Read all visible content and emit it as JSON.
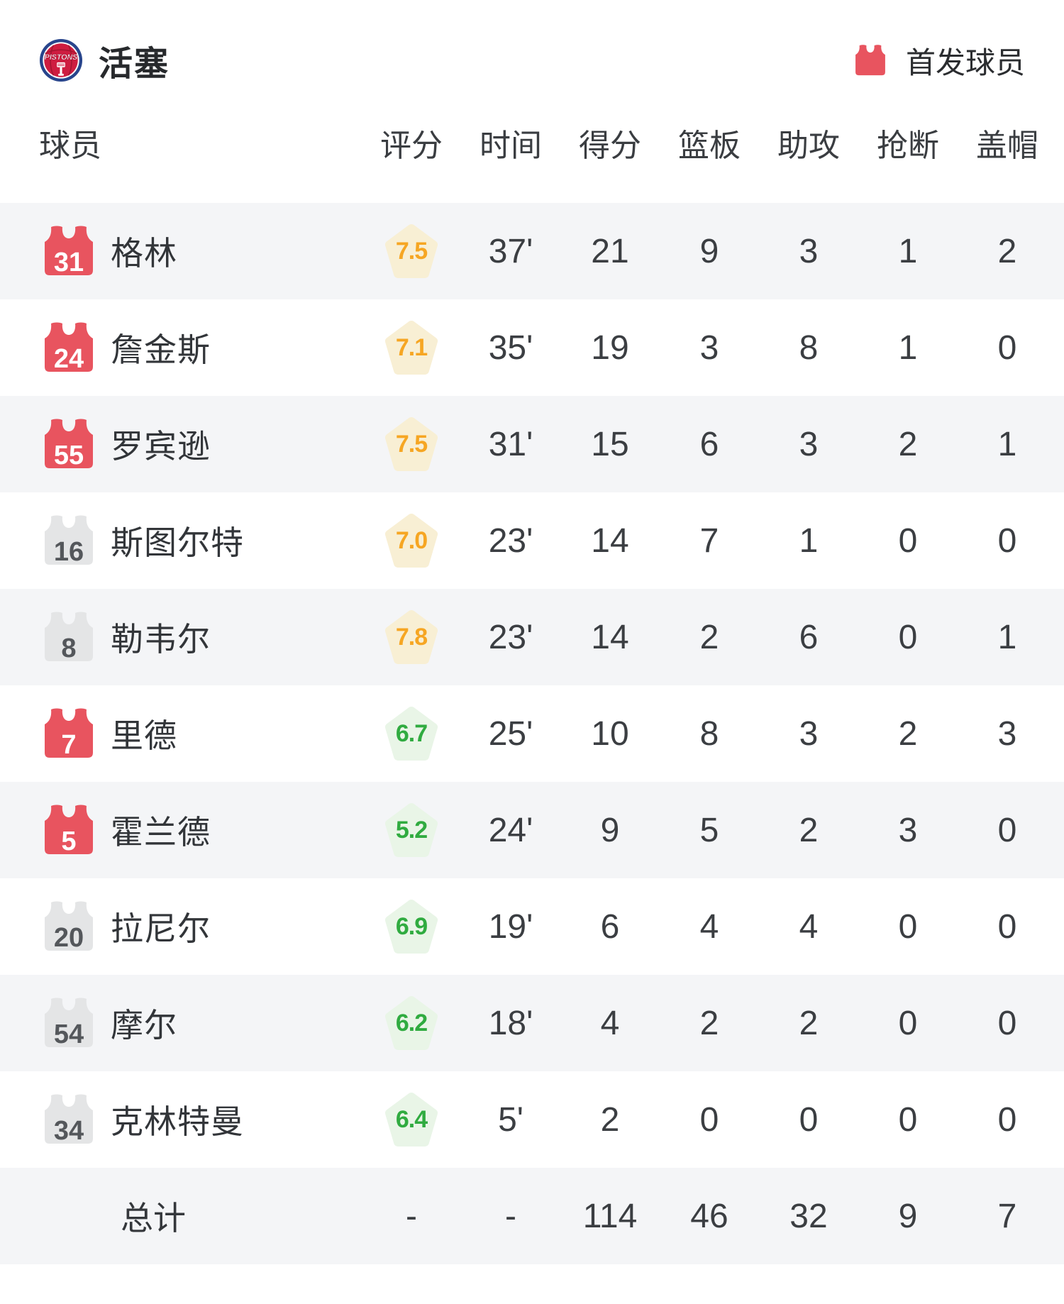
{
  "header": {
    "team_name": "活塞",
    "legend_label": "首发球员"
  },
  "colors": {
    "starter_jersey": "#e8545f",
    "bench_jersey": "#e4e5e6",
    "row_alt_bg": "#f4f5f7",
    "rating_orange_text": "#f6a623",
    "rating_orange_bg": "#f8efd4",
    "rating_green_text": "#30ab40",
    "rating_green_bg": "#e9f5e7",
    "logo_blue": "#28458c",
    "logo_red": "#ce1d40"
  },
  "table": {
    "columns": [
      "球员",
      "评分",
      "时间",
      "得分",
      "篮板",
      "助攻",
      "抢断",
      "盖帽"
    ],
    "players": [
      {
        "number": "31",
        "name": "格林",
        "starter": true,
        "rating": "7.5",
        "rating_tone": "orange",
        "time": "37'",
        "points": "21",
        "rebounds": "9",
        "assists": "3",
        "steals": "1",
        "blocks": "2"
      },
      {
        "number": "24",
        "name": "詹金斯",
        "starter": true,
        "rating": "7.1",
        "rating_tone": "orange",
        "time": "35'",
        "points": "19",
        "rebounds": "3",
        "assists": "8",
        "steals": "1",
        "blocks": "0"
      },
      {
        "number": "55",
        "name": "罗宾逊",
        "starter": true,
        "rating": "7.5",
        "rating_tone": "orange",
        "time": "31'",
        "points": "15",
        "rebounds": "6",
        "assists": "3",
        "steals": "2",
        "blocks": "1"
      },
      {
        "number": "16",
        "name": "斯图尔特",
        "starter": false,
        "rating": "7.0",
        "rating_tone": "orange",
        "time": "23'",
        "points": "14",
        "rebounds": "7",
        "assists": "1",
        "steals": "0",
        "blocks": "0"
      },
      {
        "number": "8",
        "name": "勒韦尔",
        "starter": false,
        "rating": "7.8",
        "rating_tone": "orange",
        "time": "23'",
        "points": "14",
        "rebounds": "2",
        "assists": "6",
        "steals": "0",
        "blocks": "1"
      },
      {
        "number": "7",
        "name": "里德",
        "starter": true,
        "rating": "6.7",
        "rating_tone": "green",
        "time": "25'",
        "points": "10",
        "rebounds": "8",
        "assists": "3",
        "steals": "2",
        "blocks": "3"
      },
      {
        "number": "5",
        "name": "霍兰德",
        "starter": true,
        "rating": "5.2",
        "rating_tone": "green",
        "time": "24'",
        "points": "9",
        "rebounds": "5",
        "assists": "2",
        "steals": "3",
        "blocks": "0"
      },
      {
        "number": "20",
        "name": "拉尼尔",
        "starter": false,
        "rating": "6.9",
        "rating_tone": "green",
        "time": "19'",
        "points": "6",
        "rebounds": "4",
        "assists": "4",
        "steals": "0",
        "blocks": "0"
      },
      {
        "number": "54",
        "name": "摩尔",
        "starter": false,
        "rating": "6.2",
        "rating_tone": "green",
        "time": "18'",
        "points": "4",
        "rebounds": "2",
        "assists": "2",
        "steals": "0",
        "blocks": "0"
      },
      {
        "number": "34",
        "name": "克林特曼",
        "starter": false,
        "rating": "6.4",
        "rating_tone": "green",
        "time": "5'",
        "points": "2",
        "rebounds": "0",
        "assists": "0",
        "steals": "0",
        "blocks": "0"
      }
    ],
    "total": {
      "label": "总计",
      "rating": "-",
      "time": "-",
      "points": "114",
      "rebounds": "46",
      "assists": "32",
      "steals": "9",
      "blocks": "7"
    }
  }
}
